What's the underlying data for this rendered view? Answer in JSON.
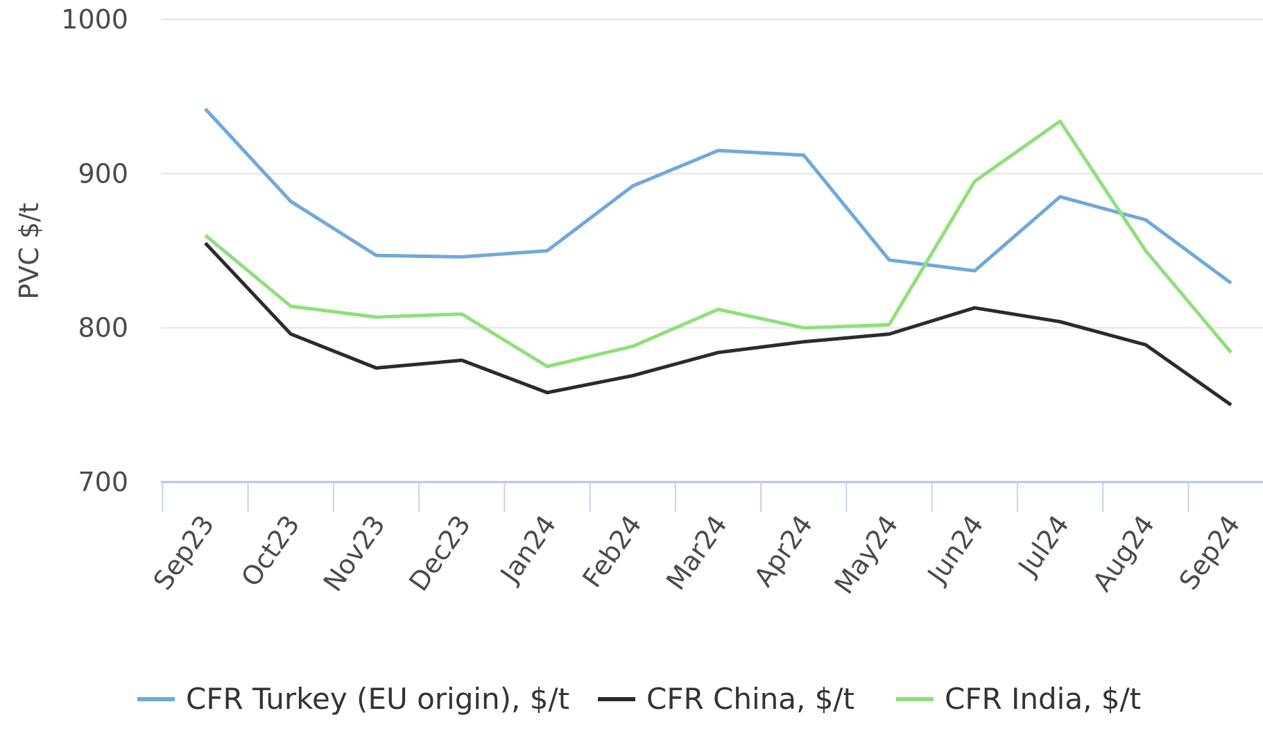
{
  "chart_data": {
    "type": "line",
    "y_label": "PVC $/t",
    "categories": [
      "Sep23",
      "Oct23",
      "Nov23",
      "Dec23",
      "Jan24",
      "Feb24",
      "Mar24",
      "Apr24",
      "May24",
      "Jun24",
      "Jul24",
      "Aug24",
      "Sep24"
    ],
    "series": [
      {
        "name": "CFR Turkey (EU origin), $/t",
        "color": "#6fa8dc",
        "values": [
          942,
          882,
          847,
          846,
          850,
          892,
          915,
          912,
          844,
          837,
          885,
          870,
          829
        ]
      },
      {
        "name": "CFR China, $/t",
        "color": "#2b2b2b",
        "values": [
          855,
          796,
          774,
          779,
          758,
          769,
          784,
          791,
          796,
          813,
          804,
          789,
          750
        ]
      },
      {
        "name": "CFR India, $/t",
        "color": "#8ee07a",
        "values": [
          860,
          814,
          807,
          809,
          775,
          788,
          812,
          800,
          802,
          895,
          934,
          850,
          784
        ]
      }
    ],
    "ylim": [
      700,
      1000
    ],
    "yticks": [
      700,
      800,
      900,
      1000
    ],
    "grid": true,
    "legend": "bottom"
  }
}
